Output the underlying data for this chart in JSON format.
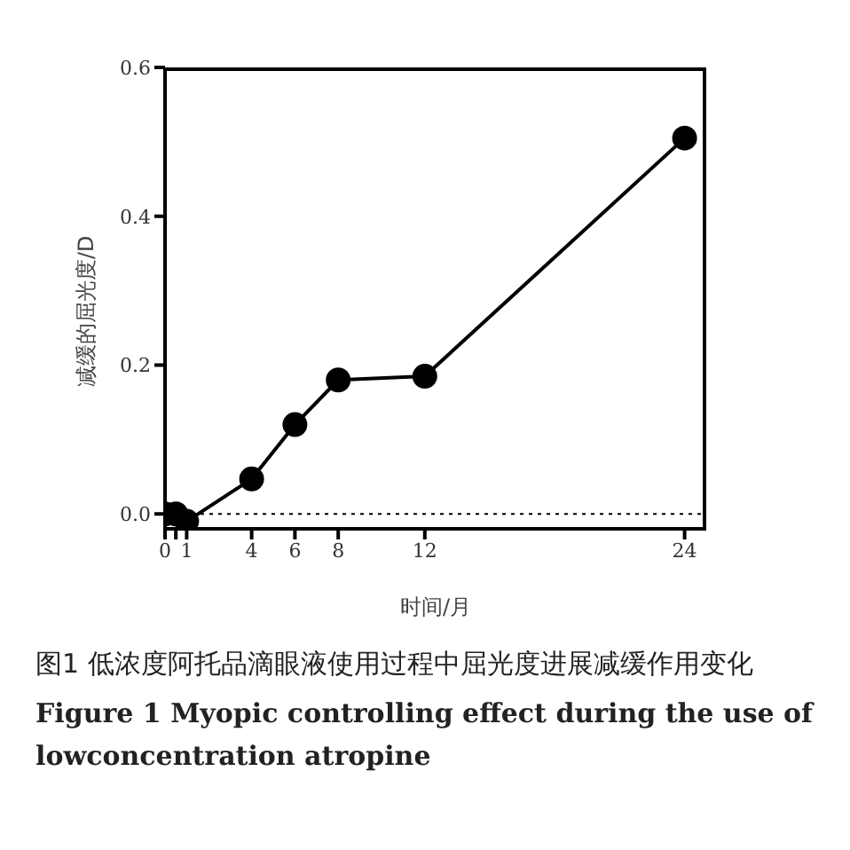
{
  "chart_data": {
    "type": "line",
    "xlabel": "时间/月",
    "ylabel": "减缓的屈光度/D",
    "x": [
      0,
      0.5,
      1,
      4,
      6,
      8,
      12,
      24
    ],
    "series": [
      {
        "color": "#000000",
        "values": [
          0,
          0,
          -0.01,
          0.047,
          0.12,
          0.18,
          0.185,
          0.505
        ]
      }
    ],
    "xlim": [
      0,
      25
    ],
    "xticks": [
      0,
      {
        "value": 0.5,
        "label": null
      },
      1,
      4,
      6,
      8,
      12,
      24
    ],
    "ylim": [
      -0.02,
      0.6
    ],
    "yticks": [
      {
        "value": 0,
        "label": "0.0"
      },
      0.2,
      0.4,
      0.6
    ],
    "ref_lines": [
      {
        "axis": "y",
        "value": 0,
        "label": null,
        "line_style": "dotted"
      }
    ],
    "marker": "circle",
    "line_style": "solid",
    "grid": false,
    "annotations": [
      "图1 低浓度阿托品滴眼液使用过程中屈光度进展减缓作用变化",
      "Figure 1 Myopic controlling effect during the use of lowconcentration atropine"
    ]
  }
}
